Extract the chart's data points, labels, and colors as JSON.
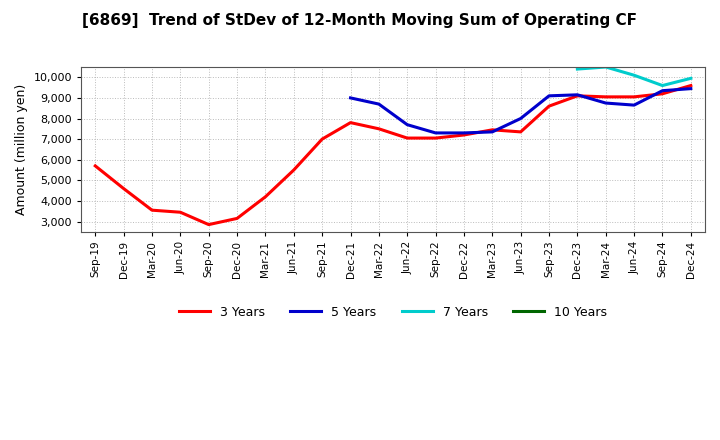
{
  "title": "[6869]  Trend of StDev of 12-Month Moving Sum of Operating CF",
  "ylabel": "Amount (million yen)",
  "ylim": [
    2500,
    10500
  ],
  "yticks": [
    3000,
    4000,
    5000,
    6000,
    7000,
    8000,
    9000,
    10000
  ],
  "background_color": "#ffffff",
  "grid_color": "#aaaaaa",
  "x_labels": [
    "Sep-19",
    "Dec-19",
    "Mar-20",
    "Jun-20",
    "Sep-20",
    "Dec-20",
    "Mar-21",
    "Jun-21",
    "Sep-21",
    "Dec-21",
    "Mar-22",
    "Jun-22",
    "Sep-22",
    "Dec-22",
    "Mar-23",
    "Jun-23",
    "Sep-23",
    "Dec-23",
    "Mar-24",
    "Jun-24",
    "Sep-24",
    "Dec-24"
  ],
  "series": {
    "3 Years": {
      "color": "#ff0000",
      "data_x": [
        0,
        1,
        2,
        3,
        4,
        5,
        6,
        7,
        8,
        9,
        10,
        11,
        12,
        13,
        14,
        15,
        16,
        17,
        18,
        19,
        20,
        21
      ],
      "data_y": [
        5700,
        4600,
        3550,
        3450,
        2850,
        3150,
        4200,
        5500,
        7000,
        7800,
        7500,
        7050,
        7050,
        7200,
        7450,
        7350,
        8600,
        9100,
        9050,
        9050,
        9200,
        9600
      ]
    },
    "5 Years": {
      "color": "#0000cc",
      "data_x": [
        9,
        10,
        11,
        12,
        13,
        14,
        15,
        16,
        17,
        18,
        19,
        20,
        21
      ],
      "data_y": [
        9000,
        8700,
        7700,
        7300,
        7300,
        7350,
        8000,
        9100,
        9150,
        8750,
        8650,
        9350,
        9450
      ]
    },
    "7 Years": {
      "color": "#00cccc",
      "data_x": [
        17,
        18,
        19,
        20,
        21
      ],
      "data_y": [
        10400,
        10500,
        10100,
        9600,
        9950
      ]
    },
    "10 Years": {
      "color": "#006600",
      "data_x": [],
      "data_y": []
    }
  },
  "series_order": [
    "3 Years",
    "5 Years",
    "7 Years",
    "10 Years"
  ]
}
